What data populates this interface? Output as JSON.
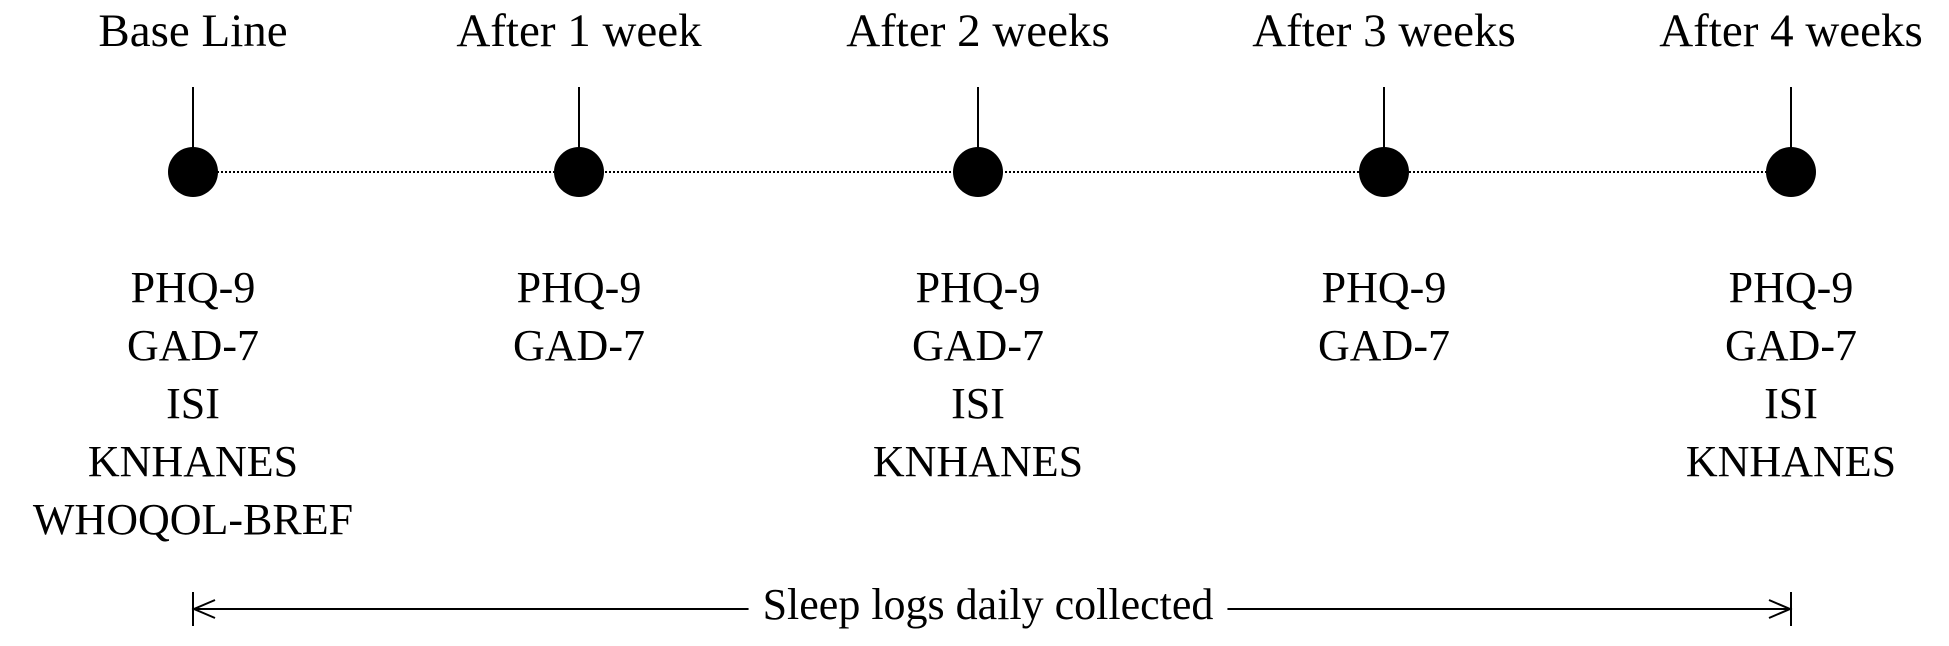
{
  "timepoints": [
    {
      "label": "Base Line",
      "measures": [
        "PHQ-9",
        "GAD-7",
        "ISI",
        "KNHANES",
        "WHOQOL-BREF"
      ]
    },
    {
      "label": "After 1 week",
      "measures": [
        "PHQ-9",
        "GAD-7"
      ]
    },
    {
      "label": "After 2 weeks",
      "measures": [
        "PHQ-9",
        "GAD-7",
        "ISI",
        "KNHANES"
      ]
    },
    {
      "label": "After 3 weeks",
      "measures": [
        "PHQ-9",
        "GAD-7"
      ]
    },
    {
      "label": "After 4 weeks",
      "measures": [
        "PHQ-9",
        "GAD-7",
        "ISI",
        "KNHANES"
      ]
    }
  ],
  "footer": "Sleep logs daily collected"
}
